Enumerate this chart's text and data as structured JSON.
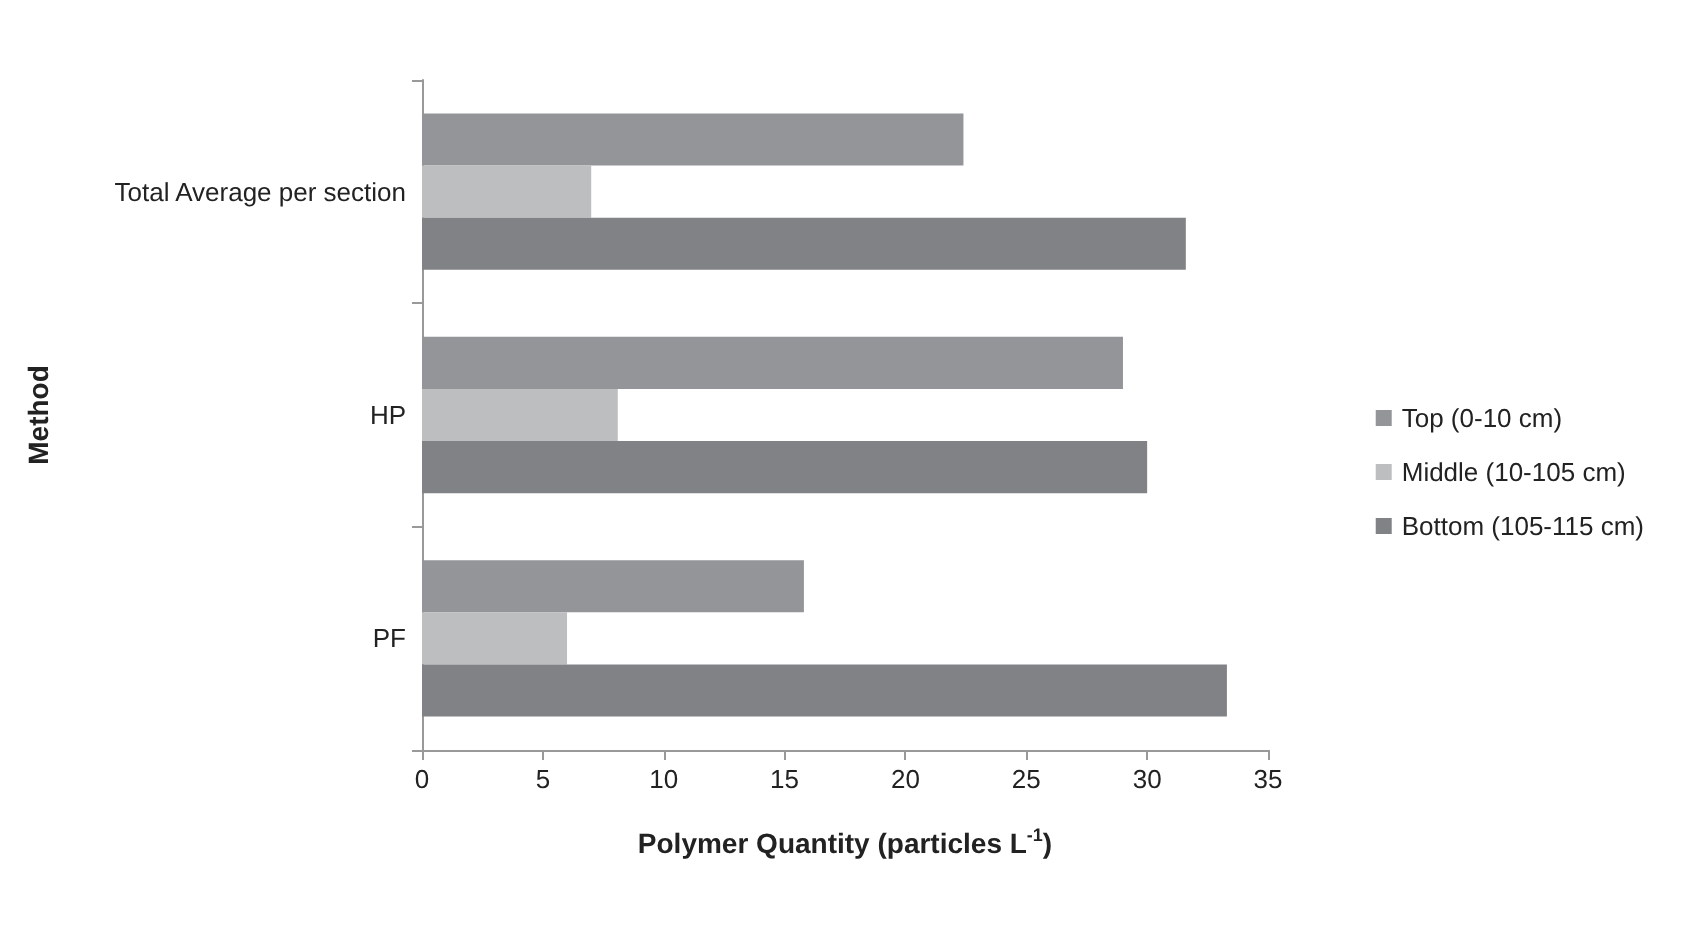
{
  "chart_data": {
    "type": "bar",
    "orientation": "horizontal",
    "xlabel": "Polymer Quantity (particles L$^{-1}$)",
    "ylabel": "Method",
    "categories": [
      "Total Average per section",
      "HP",
      "PF"
    ],
    "series": [
      {
        "name": "Top (0-10 cm)",
        "color": "#939598",
        "values": [
          22.4,
          29.0,
          15.8
        ]
      },
      {
        "name": "Middle (10-105 cm)",
        "color": "#bcbec0",
        "values": [
          7.0,
          8.1,
          6.0
        ]
      },
      {
        "name": "Bottom (105-115 cm)",
        "color": "#808285",
        "values": [
          31.6,
          30.0,
          33.3
        ]
      }
    ],
    "xlim": [
      0,
      35
    ],
    "xticks": [
      0,
      5,
      10,
      15,
      20,
      25,
      30,
      35
    ],
    "grid": false,
    "legend": "right"
  }
}
